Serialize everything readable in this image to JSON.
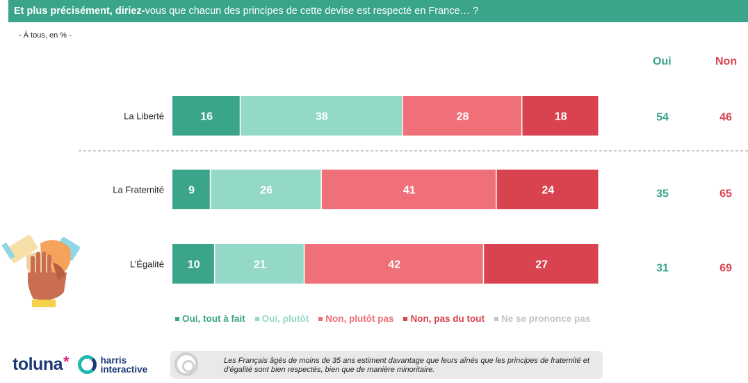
{
  "header": {
    "title_bold": "Et plus précisément, diriez-",
    "title_rest": "vous que chacun des principes de cette devise est respecté en France… ?"
  },
  "subtitle": "- À tous, en % -",
  "column_heads": {
    "oui": "Oui",
    "non": "Non"
  },
  "colors": {
    "header_bg": "#3aa58a",
    "oui_tout_a_fait": "#3aa58a",
    "oui_plutot": "#94d8c8",
    "non_plutot_pas": "#ef7078",
    "non_pas_du_tout": "#d8434f",
    "ne_se_prononce_pas": "#c4c4c4",
    "oui_text": "#3aa58a",
    "non_text": "#d8434f"
  },
  "chart_data": {
    "type": "bar",
    "orientation": "horizontal-stacked-100",
    "categories": [
      "La Liberté",
      "La Fraternité",
      "L’Égalité"
    ],
    "series": [
      {
        "name": "Oui, tout à fait",
        "values": [
          16,
          9,
          10
        ]
      },
      {
        "name": "Oui, plutôt",
        "values": [
          38,
          26,
          21
        ]
      },
      {
        "name": "Non, plutôt pas",
        "values": [
          28,
          41,
          42
        ]
      },
      {
        "name": "Non, pas du tout",
        "values": [
          18,
          24,
          27
        ]
      },
      {
        "name": "Ne se prononce pas",
        "values": [
          0,
          0,
          0
        ]
      }
    ],
    "totals": {
      "oui": [
        54,
        35,
        31
      ],
      "non": [
        46,
        65,
        69
      ]
    },
    "legend_position": "bottom"
  },
  "legend": [
    {
      "label": "Oui, tout à fait",
      "color": "#3aa58a"
    },
    {
      "label": "Oui, plutôt",
      "color": "#94d8c8"
    },
    {
      "label": "Non, plutôt pas",
      "color": "#ef7078"
    },
    {
      "label": "Non, pas du tout",
      "color": "#d8434f"
    },
    {
      "label": "Ne se prononce pas",
      "color": "#c4c4c4"
    }
  ],
  "logo": {
    "toluna": "toluna",
    "star": "*",
    "harris_line1": "harris",
    "harris_line2": "interactive"
  },
  "note": {
    "text": "Les Français âgés de moins de 35 ans estiment davantage que leurs aînés que les principes de fraternité et d’égalité sont bien respectés, bien que de manière minoritaire.",
    "icon": "target-icon"
  },
  "illustration": "hands-together-icon"
}
